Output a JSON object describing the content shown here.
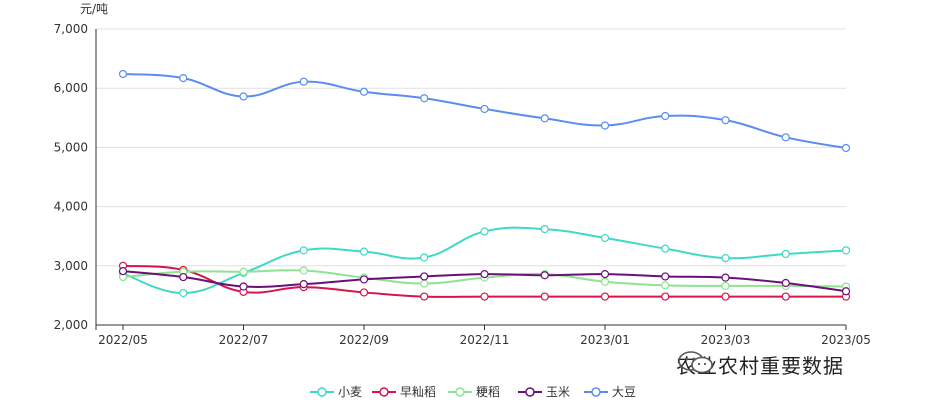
{
  "chart_data": {
    "type": "line",
    "unit_label": "元/吨",
    "x": [
      "2022/05",
      "2022/06",
      "2022/07",
      "2022/08",
      "2022/09",
      "2022/10",
      "2022/11",
      "2022/12",
      "2023/01",
      "2023/02",
      "2023/03",
      "2023/04",
      "2023/05"
    ],
    "x_tick_labels": [
      "2022/05",
      "2022/07",
      "2022/09",
      "2022/11",
      "2023/01",
      "2023/03",
      "2023/05"
    ],
    "ylim": [
      2000,
      7000
    ],
    "y_ticks": [
      2000,
      3000,
      4000,
      5000,
      6000,
      7000
    ],
    "y_tick_labels": [
      "2,000",
      "3,000",
      "4,000",
      "5,000",
      "6,000",
      "7,000"
    ],
    "grid": true,
    "legend_position": "bottom",
    "series": [
      {
        "name": "小麦",
        "color": "#3fd9c6",
        "values": [
          2870,
          2540,
          2880,
          3260,
          3240,
          3140,
          3580,
          3620,
          3470,
          3290,
          3130,
          3200,
          3260
        ]
      },
      {
        "name": "早籼稻",
        "color": "#d4164b",
        "values": [
          3000,
          2930,
          2560,
          2640,
          2550,
          2480,
          2480,
          2480,
          2480,
          2480,
          2480,
          2480,
          2480
        ]
      },
      {
        "name": "粳稻",
        "color": "#8de38f",
        "values": [
          2810,
          2900,
          2900,
          2920,
          2800,
          2700,
          2800,
          2860,
          2730,
          2670,
          2660,
          2660,
          2650
        ]
      },
      {
        "name": "玉米",
        "color": "#6b0f7a",
        "values": [
          2910,
          2810,
          2650,
          2690,
          2770,
          2820,
          2860,
          2840,
          2860,
          2820,
          2800,
          2710,
          2570
        ]
      },
      {
        "name": "大豆",
        "color": "#5b8def",
        "values": [
          6240,
          6170,
          5860,
          6110,
          5940,
          5830,
          5650,
          5490,
          5370,
          5530,
          5460,
          5170,
          4990
        ]
      }
    ]
  },
  "watermark": {
    "text": "农业农村重要数据",
    "icon": "wechat-icon"
  }
}
